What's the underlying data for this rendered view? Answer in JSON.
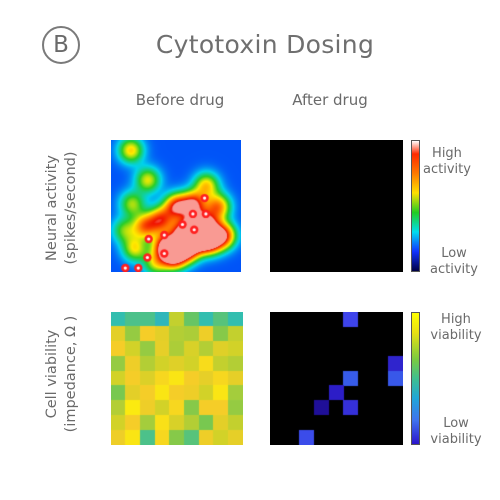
{
  "panel_letter": "B",
  "chart_data": [
    {
      "type": "heatmap",
      "title": "Cytotoxin Dosing",
      "columns": [
        "Before drug",
        "After drug"
      ],
      "row_label": "Neural activity\n(spikes/second)",
      "colorbar": {
        "high": "High\nactivity",
        "low": "Low\nactivity"
      },
      "grid_size": 10,
      "before_drug_hotspots": [
        [
          0.45,
          1.5,
          0.75
        ],
        [
          0.35,
          1.6,
          4.8
        ],
        [
          0.4,
          2.8,
          3.0
        ],
        [
          0.55,
          2.6,
          6.5
        ],
        [
          0.6,
          3.8,
          6.0
        ],
        [
          0.7,
          5.0,
          5.0
        ],
        [
          0.75,
          5.5,
          7.0
        ],
        [
          0.7,
          6.5,
          6.3
        ],
        [
          0.5,
          7.5,
          6.3
        ],
        [
          0.85,
          4.2,
          8.0
        ],
        [
          0.8,
          4.8,
          8.8
        ],
        [
          0.9,
          5.8,
          8.2
        ],
        [
          0.95,
          6.8,
          7.4
        ],
        [
          0.75,
          7.6,
          7.6
        ],
        [
          0.7,
          8.6,
          7.2
        ],
        [
          0.55,
          8.2,
          5.0
        ],
        [
          0.45,
          7.3,
          3.4
        ],
        [
          0.7,
          6.3,
          4.8
        ],
        [
          0.4,
          1.8,
          8.2
        ],
        [
          0.3,
          1.0,
          6.8
        ],
        [
          0.35,
          3.4,
          9.3
        ]
      ],
      "before_drug_spike_sites": [
        [
          7.2,
          4.4
        ],
        [
          6.3,
          5.6
        ],
        [
          7.3,
          5.6
        ],
        [
          5.5,
          6.4
        ],
        [
          6.4,
          6.8
        ],
        [
          4.1,
          7.2
        ],
        [
          2.9,
          7.5
        ],
        [
          4.1,
          8.6
        ],
        [
          2.8,
          8.9
        ],
        [
          2.1,
          9.7
        ],
        [
          1.1,
          9.7
        ]
      ],
      "after_drug": "all low"
    },
    {
      "type": "heatmap",
      "columns": [
        "Before drug",
        "After drug"
      ],
      "row_label": "Cell viability\n(impedance, Ω )",
      "colorbar": {
        "high": "High\nviability",
        "low": "Low\nviability"
      },
      "grid_size": 9,
      "before_drug": [
        [
          0.55,
          0.6,
          0.6,
          0.52,
          0.78,
          0.65,
          0.55,
          0.62,
          0.55
        ],
        [
          0.85,
          0.72,
          0.9,
          0.85,
          0.76,
          0.75,
          0.88,
          0.7,
          0.78
        ],
        [
          0.9,
          0.8,
          0.72,
          0.86,
          0.75,
          0.82,
          0.76,
          0.84,
          0.8
        ],
        [
          0.72,
          0.88,
          0.76,
          0.8,
          0.84,
          0.8,
          0.93,
          0.78,
          0.76
        ],
        [
          0.8,
          0.9,
          0.83,
          0.92,
          0.95,
          0.9,
          0.86,
          0.92,
          0.86
        ],
        [
          0.68,
          0.85,
          0.9,
          0.95,
          0.9,
          0.88,
          0.8,
          0.95,
          0.74
        ],
        [
          0.76,
          0.96,
          0.88,
          0.8,
          0.92,
          0.7,
          0.9,
          0.9,
          0.72
        ],
        [
          0.8,
          0.9,
          0.74,
          0.94,
          0.82,
          0.76,
          0.68,
          0.85,
          0.78
        ],
        [
          0.88,
          0.95,
          0.6,
          0.92,
          0.7,
          0.62,
          0.88,
          0.8,
          0.86
        ]
      ],
      "after_drug": [
        [
          0,
          0,
          0,
          0,
          0,
          0,
          0,
          0,
          0
        ],
        [
          0,
          0,
          0,
          0,
          0,
          0,
          0,
          0,
          0
        ],
        [
          0,
          0,
          0,
          0,
          0,
          0,
          0,
          0,
          0
        ],
        [
          0,
          0,
          0,
          0,
          0,
          0,
          0,
          0,
          0
        ],
        [
          0,
          0,
          0,
          0,
          0,
          0,
          0,
          0,
          0
        ],
        [
          0,
          0,
          0,
          0,
          0,
          0,
          0,
          0,
          0
        ],
        [
          0,
          0,
          0,
          0,
          0,
          0,
          0,
          0,
          0
        ],
        [
          0,
          0,
          0,
          0,
          0,
          0,
          0,
          0,
          0
        ],
        [
          0,
          0,
          0,
          0,
          0,
          0,
          0,
          0,
          0
        ]
      ],
      "after_drug_points": [
        [
          0,
          5,
          0.2
        ],
        [
          3,
          8,
          0.1
        ],
        [
          4,
          5,
          0.26
        ],
        [
          4,
          8,
          0.25
        ],
        [
          5,
          4,
          0.08
        ],
        [
          6,
          3,
          0.04
        ],
        [
          6,
          5,
          0.14
        ],
        [
          8,
          2,
          0.22
        ]
      ]
    }
  ]
}
